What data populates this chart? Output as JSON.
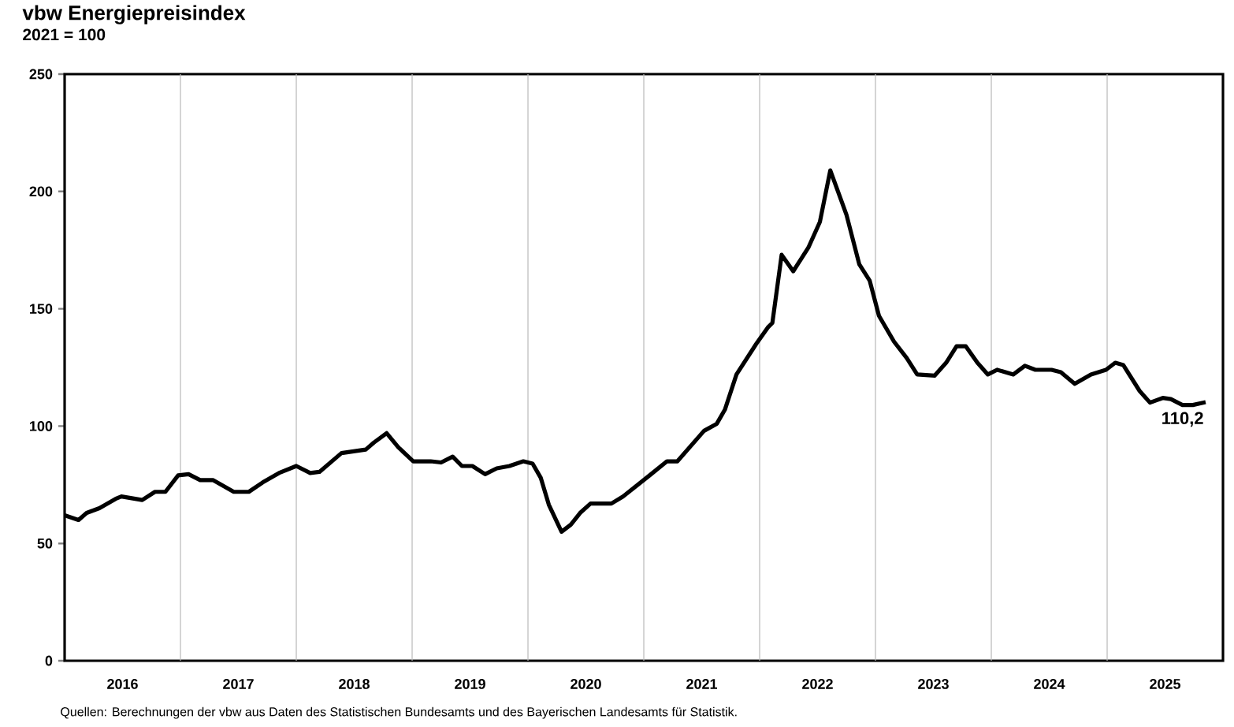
{
  "chart_data": {
    "type": "line",
    "title": "vbw Energiepreisindex",
    "subtitle": "2021 = 100",
    "xlim": [
      2016,
      2026
    ],
    "xticks": [
      {
        "value": 2016.5,
        "label": "2016"
      },
      {
        "value": 2017.5,
        "label": "2017"
      },
      {
        "value": 2018.5,
        "label": "2018"
      },
      {
        "value": 2019.5,
        "label": "2019"
      },
      {
        "value": 2020.5,
        "label": "2020"
      },
      {
        "value": 2021.5,
        "label": "2021"
      },
      {
        "value": 2022.5,
        "label": "2022"
      },
      {
        "value": 2023.5,
        "label": "2023"
      },
      {
        "value": 2024.5,
        "label": "2024"
      },
      {
        "value": 2025.5,
        "label": "2025"
      },
      {
        "value": 2017,
        "label": null
      },
      {
        "value": 2018,
        "label": null
      },
      {
        "value": 2019,
        "label": null
      },
      {
        "value": 2020,
        "label": null
      },
      {
        "value": 2021,
        "label": null
      },
      {
        "value": 2022,
        "label": null
      },
      {
        "value": 2023,
        "label": null
      },
      {
        "value": 2024,
        "label": null
      },
      {
        "value": 2025,
        "label": null
      }
    ],
    "ylim": [
      0,
      250
    ],
    "yticks": [
      0,
      50,
      100,
      150,
      200,
      250
    ],
    "grid": "x",
    "marker": "none",
    "line_style": "solid",
    "series": [
      {
        "color": "#000000",
        "x": [
          2016.0,
          2016.12,
          2016.19,
          2016.3,
          2016.44,
          2016.49,
          2016.67,
          2016.78,
          2016.87,
          2016.98,
          2017.07,
          2017.17,
          2017.28,
          2017.46,
          2017.59,
          2017.71,
          2017.85,
          2018.0,
          2018.12,
          2018.2,
          2018.39,
          2018.6,
          2018.67,
          2018.78,
          2018.88,
          2019.01,
          2019.16,
          2019.25,
          2019.35,
          2019.43,
          2019.52,
          2019.63,
          2019.73,
          2019.84,
          2019.96,
          2020.04,
          2020.11,
          2020.18,
          2020.29,
          2020.37,
          2020.45,
          2020.54,
          2020.72,
          2020.82,
          2021.05,
          2021.2,
          2021.29,
          2021.52,
          2021.63,
          2021.7,
          2021.8,
          2021.97,
          2022.07,
          2022.11,
          2022.19,
          2022.29,
          2022.42,
          2022.52,
          2022.61,
          2022.75,
          2022.86,
          2022.95,
          2023.03,
          2023.16,
          2023.27,
          2023.36,
          2023.51,
          2023.61,
          2023.7,
          2023.78,
          2023.88,
          2023.97,
          2024.05,
          2024.19,
          2024.29,
          2024.38,
          2024.52,
          2024.6,
          2024.72,
          2024.86,
          2024.99,
          2025.07,
          2025.14,
          2025.28,
          2025.37,
          2025.48,
          2025.55,
          2025.65,
          2025.74,
          2025.85
        ],
        "values": [
          62,
          60,
          63,
          65,
          69,
          70,
          68.5,
          72,
          72,
          79,
          79.5,
          77,
          77,
          72,
          72,
          76,
          80,
          83,
          80,
          80.5,
          88.5,
          90,
          93,
          97,
          91,
          85,
          85,
          84.5,
          87,
          83,
          83,
          79.5,
          82,
          83,
          85,
          84,
          78,
          66.5,
          55,
          58,
          63,
          67,
          67,
          70,
          79,
          85,
          85,
          98,
          101,
          107,
          122,
          135,
          142,
          144,
          173,
          166,
          176,
          187,
          209,
          190,
          169,
          162,
          147,
          136,
          129,
          122,
          121.5,
          127,
          134,
          134,
          127,
          122,
          124,
          122,
          125.7,
          124,
          124,
          123,
          118,
          122,
          124,
          127,
          126,
          115,
          110,
          112,
          111.5,
          109,
          109,
          110.2
        ]
      }
    ],
    "annotations": [
      {
        "text": "110,2",
        "x": 2025.85,
        "y": 110.2
      },
      "Quellen: Berechnungen der vbw aus Daten des Statistischen Bundesamts und des Bayerischen Landesamts für Statistik."
    ]
  }
}
